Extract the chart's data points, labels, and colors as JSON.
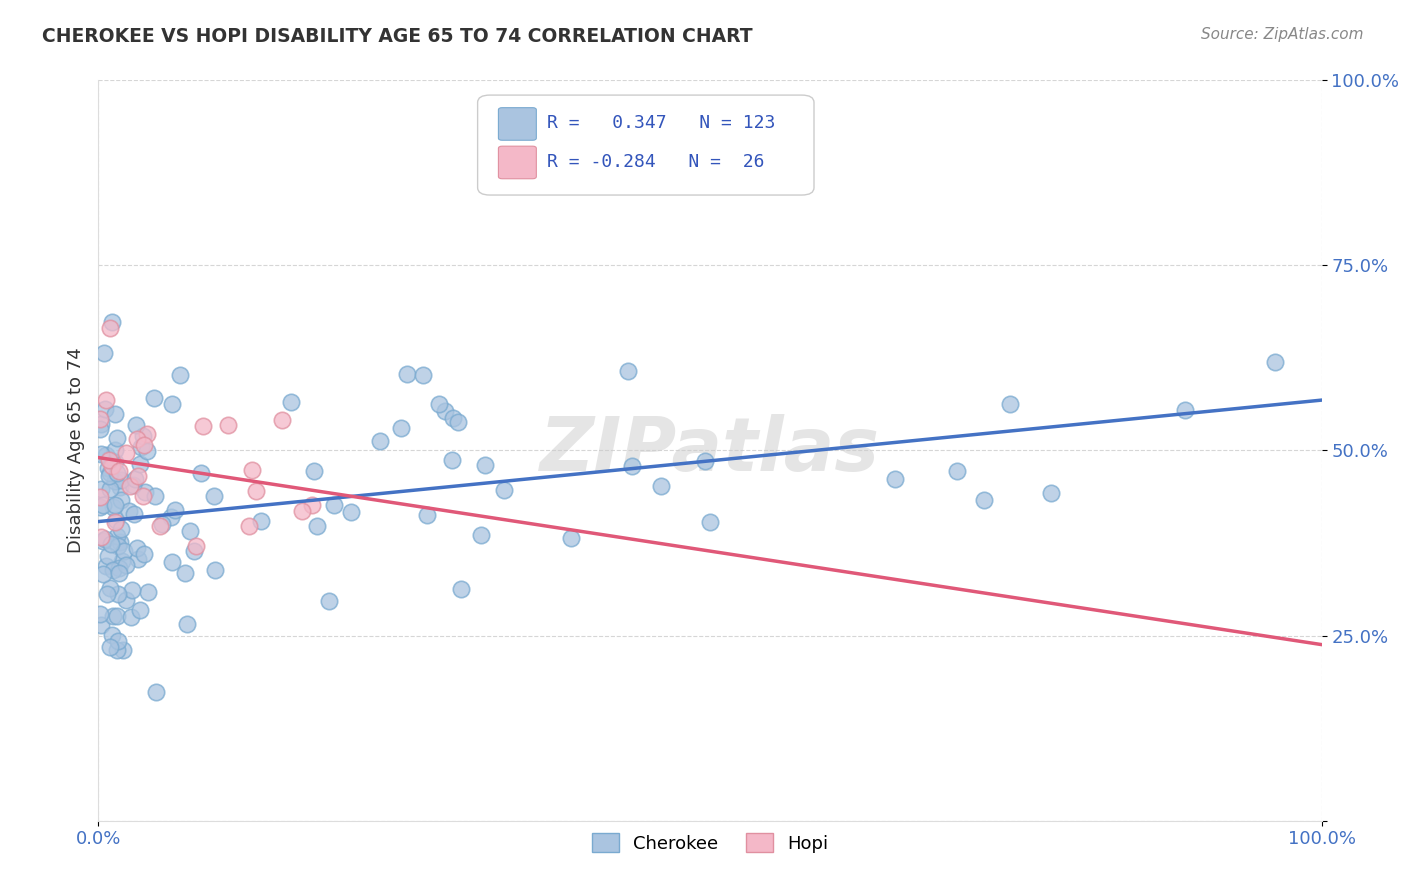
{
  "title": "CHEROKEE VS HOPI DISABILITY AGE 65 TO 74 CORRELATION CHART",
  "source": "Source: ZipAtlas.com",
  "ylabel": "Disability Age 65 to 74",
  "xlim": [
    0,
    1
  ],
  "ylim": [
    0,
    1
  ],
  "cherokee_R": 0.347,
  "cherokee_N": 123,
  "hopi_R": -0.284,
  "hopi_N": 26,
  "cherokee_color": "#aac4e0",
  "cherokee_edge_color": "#7aaad0",
  "cherokee_line_color": "#4472c4",
  "hopi_color": "#f4b8c8",
  "hopi_edge_color": "#e090a0",
  "hopi_line_color": "#e05878",
  "background_color": "#ffffff",
  "grid_color": "#cccccc",
  "title_color": "#333333",
  "source_color": "#888888",
  "tick_color": "#4472c4",
  "watermark_color": "#dddddd",
  "legend_text_color": "#3355bb"
}
